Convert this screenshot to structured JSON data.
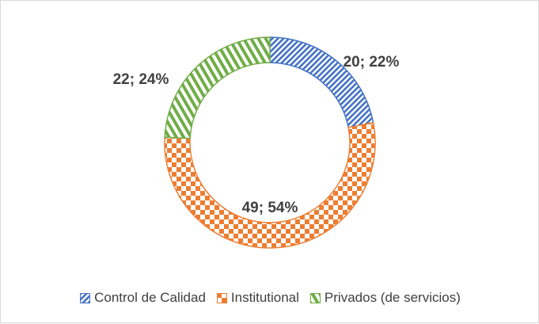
{
  "chart_data": {
    "type": "pie",
    "categories": [
      "Control de Calidad",
      "Institutional",
      "Privados (de servicios)"
    ],
    "values": [
      20,
      49,
      22
    ],
    "percents": [
      22,
      54,
      24
    ],
    "data_labels": [
      "20; 22%",
      "49; 54%",
      "22; 24%"
    ],
    "colors": [
      "#4472c4",
      "#ed7d31",
      "#70ad47"
    ],
    "patterns": [
      "diagonal-stripes",
      "checkerboard",
      "vertical-stripes"
    ],
    "legend_position": "bottom",
    "title": ""
  }
}
